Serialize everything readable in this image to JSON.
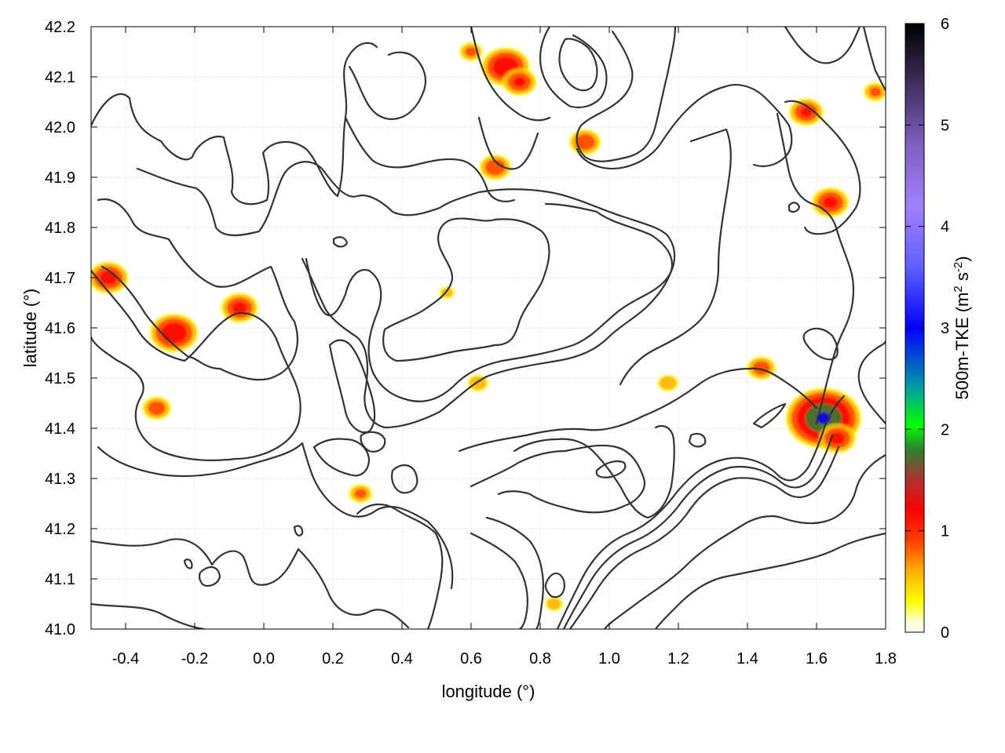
{
  "chart_data": {
    "type": "heatmap",
    "title": "",
    "xlabel": "longitude (°)",
    "ylabel": "latitude (°)",
    "xlim": [
      -0.5,
      1.8
    ],
    "ylim": [
      41.0,
      42.2
    ],
    "x_ticks": [
      -0.4,
      -0.2,
      0.0,
      0.2,
      0.4,
      0.6,
      0.8,
      1.0,
      1.2,
      1.4,
      1.6,
      1.8
    ],
    "x_tick_labels": [
      "-0.4",
      "-0.2",
      "0.0",
      "0.2",
      "0.4",
      "0.6",
      "0.8",
      "1.0",
      "1.2",
      "1.4",
      "1.6",
      "1.8"
    ],
    "y_ticks": [
      41.0,
      41.1,
      41.2,
      41.3,
      41.4,
      41.5,
      41.6,
      41.7,
      41.8,
      41.9,
      42.0,
      42.1,
      42.2
    ],
    "y_tick_labels": [
      "41.0",
      "41.1",
      "41.2",
      "41.3",
      "41.4",
      "41.5",
      "41.6",
      "41.7",
      "41.8",
      "41.9",
      "42.0",
      "42.1",
      "42.2"
    ],
    "grid": true,
    "colorbar": {
      "label_main": "500m-TKE (m",
      "label_sup1": "2",
      "label_mid": " s",
      "label_sup2": "-2",
      "label_end": ")",
      "range": [
        0,
        6
      ],
      "ticks": [
        0,
        1,
        2,
        3,
        4,
        5,
        6
      ],
      "tick_labels": [
        "0",
        "1",
        "2",
        "3",
        "4",
        "5",
        "6"
      ],
      "palette": [
        [
          0.0,
          "#ffffff"
        ],
        [
          0.02,
          "#ffffc8"
        ],
        [
          0.05,
          "#ffff00"
        ],
        [
          0.1,
          "#ffb000"
        ],
        [
          0.15,
          "#ff4000"
        ],
        [
          0.2,
          "#ff0000"
        ],
        [
          0.25,
          "#b03030"
        ],
        [
          0.3,
          "#308030"
        ],
        [
          0.34,
          "#00ff00"
        ],
        [
          0.4,
          "#00a0a0"
        ],
        [
          0.5,
          "#0000ff"
        ],
        [
          0.6,
          "#6060ff"
        ],
        [
          0.7,
          "#a080ff"
        ],
        [
          0.8,
          "#8060c0"
        ],
        [
          0.9,
          "#403060"
        ],
        [
          1.0,
          "#000000"
        ]
      ]
    },
    "hotspots": [
      {
        "lon": -0.45,
        "lat": 41.7,
        "value": 1.2
      },
      {
        "lon": -0.26,
        "lat": 41.59,
        "value": 1.5
      },
      {
        "lon": -0.07,
        "lat": 41.64,
        "value": 1.1
      },
      {
        "lon": -0.31,
        "lat": 41.44,
        "value": 0.8
      },
      {
        "lon": 0.28,
        "lat": 41.27,
        "value": 0.6
      },
      {
        "lon": 0.62,
        "lat": 41.49,
        "value": 0.5
      },
      {
        "lon": 0.7,
        "lat": 42.12,
        "value": 1.5
      },
      {
        "lon": 0.74,
        "lat": 42.09,
        "value": 1.0
      },
      {
        "lon": 0.67,
        "lat": 41.92,
        "value": 0.9
      },
      {
        "lon": 0.93,
        "lat": 41.97,
        "value": 0.9
      },
      {
        "lon": 0.6,
        "lat": 42.15,
        "value": 0.6
      },
      {
        "lon": 1.57,
        "lat": 42.03,
        "value": 1.0
      },
      {
        "lon": 1.64,
        "lat": 41.85,
        "value": 1.1
      },
      {
        "lon": 1.62,
        "lat": 41.42,
        "value": 2.5
      },
      {
        "lon": 1.66,
        "lat": 41.38,
        "value": 1.1
      },
      {
        "lon": 1.44,
        "lat": 41.52,
        "value": 0.8
      },
      {
        "lon": 1.17,
        "lat": 41.49,
        "value": 0.5
      },
      {
        "lon": 1.77,
        "lat": 42.07,
        "value": 0.6
      },
      {
        "lon": 0.84,
        "lat": 41.05,
        "value": 0.4
      },
      {
        "lon": 0.53,
        "lat": 41.67,
        "value": 0.3
      }
    ]
  }
}
